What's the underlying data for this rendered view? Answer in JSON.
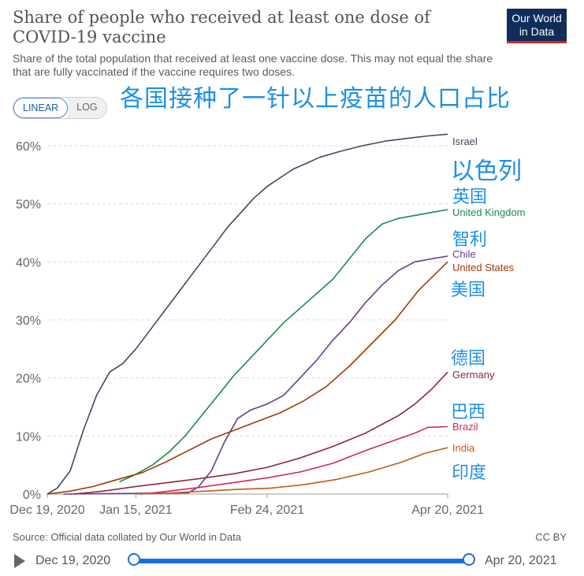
{
  "header": {
    "title": "Share of people who received at least one dose of COVID-19 vaccine",
    "subtitle": "Share of the total population that received at least one vaccine dose. This may not equal the share that are fully vaccinated if the vaccine requires two doses.",
    "logo_line1": "Our World",
    "logo_line2": "in Data"
  },
  "scale_toggle": {
    "linear": "LINEAR",
    "log": "LOG",
    "selected": "LINEAR"
  },
  "annotation_title_cn": "各国接种了一针以上疫苗的人口占比",
  "annotations_cn": {
    "Israel": "以色列",
    "United Kingdom": "英国",
    "Chile": "智利",
    "United States": "美国",
    "Germany": "德国",
    "Brazil": "巴西",
    "India": "印度"
  },
  "chart_data": {
    "type": "line",
    "title": "Share of people who received at least one dose of COVID-19 vaccine",
    "x_ticks": [
      "Dec 19, 2020",
      "Jan 15, 2021",
      "Feb 24, 2021",
      "Apr 20, 2021"
    ],
    "x_range": [
      "2020-12-19",
      "2021-04-20"
    ],
    "y_ticks": [
      "0%",
      "10%",
      "20%",
      "30%",
      "40%",
      "50%",
      "60%"
    ],
    "ylim": [
      0,
      60
    ],
    "grid": "horizontal dashed",
    "series": [
      {
        "name": "Israel",
        "color": "#3e4a63",
        "points": [
          [
            "2020-12-19",
            0
          ],
          [
            "2020-12-22",
            1
          ],
          [
            "2020-12-26",
            4
          ],
          [
            "2020-12-30",
            11
          ],
          [
            "2021-01-03",
            17
          ],
          [
            "2021-01-07",
            21
          ],
          [
            "2021-01-11",
            22.5
          ],
          [
            "2021-01-15",
            25
          ],
          [
            "2021-01-19",
            28
          ],
          [
            "2021-01-23",
            31
          ],
          [
            "2021-01-27",
            34
          ],
          [
            "2021-01-31",
            37
          ],
          [
            "2021-02-04",
            40
          ],
          [
            "2021-02-08",
            43
          ],
          [
            "2021-02-12",
            46
          ],
          [
            "2021-02-16",
            48.5
          ],
          [
            "2021-02-20",
            51
          ],
          [
            "2021-02-24",
            53
          ],
          [
            "2021-02-28",
            54.5
          ],
          [
            "2021-03-04",
            56
          ],
          [
            "2021-03-08",
            57
          ],
          [
            "2021-03-12",
            58
          ],
          [
            "2021-03-18",
            59
          ],
          [
            "2021-03-25",
            60
          ],
          [
            "2021-04-01",
            60.8
          ],
          [
            "2021-04-08",
            61.3
          ],
          [
            "2021-04-14",
            61.7
          ],
          [
            "2021-04-20",
            62
          ]
        ]
      },
      {
        "name": "United Kingdom",
        "color": "#1a8a4f",
        "points": [
          [
            "2021-01-10",
            2.1
          ],
          [
            "2021-01-15",
            3.4
          ],
          [
            "2021-01-20",
            5
          ],
          [
            "2021-01-25",
            7.2
          ],
          [
            "2021-01-30",
            10
          ],
          [
            "2021-02-04",
            13.5
          ],
          [
            "2021-02-09",
            17
          ],
          [
            "2021-02-14",
            20.5
          ],
          [
            "2021-02-19",
            23.5
          ],
          [
            "2021-02-24",
            26.5
          ],
          [
            "2021-03-01",
            29.5
          ],
          [
            "2021-03-06",
            32
          ],
          [
            "2021-03-11",
            34.5
          ],
          [
            "2021-03-16",
            37
          ],
          [
            "2021-03-21",
            40.5
          ],
          [
            "2021-03-26",
            44
          ],
          [
            "2021-03-31",
            46.5
          ],
          [
            "2021-04-05",
            47.5
          ],
          [
            "2021-04-10",
            48
          ],
          [
            "2021-04-15",
            48.5
          ],
          [
            "2021-04-20",
            49
          ]
        ]
      },
      {
        "name": "Chile",
        "color": "#6b3c8e",
        "points": [
          [
            "2020-12-24",
            0
          ],
          [
            "2021-01-31",
            0.2
          ],
          [
            "2021-02-03",
            1.2
          ],
          [
            "2021-02-07",
            4
          ],
          [
            "2021-02-11",
            9
          ],
          [
            "2021-02-15",
            13
          ],
          [
            "2021-02-19",
            14.5
          ],
          [
            "2021-02-24",
            15.5
          ],
          [
            "2021-03-01",
            17
          ],
          [
            "2021-03-06",
            20
          ],
          [
            "2021-03-11",
            23
          ],
          [
            "2021-03-16",
            26.5
          ],
          [
            "2021-03-21",
            29.5
          ],
          [
            "2021-03-26",
            33
          ],
          [
            "2021-03-31",
            36
          ],
          [
            "2021-04-05",
            38.5
          ],
          [
            "2021-04-10",
            40
          ],
          [
            "2021-04-15",
            40.5
          ],
          [
            "2021-04-20",
            41
          ]
        ]
      },
      {
        "name": "United States",
        "color": "#a2390a",
        "points": [
          [
            "2020-12-19",
            0
          ],
          [
            "2020-12-26",
            0.5
          ],
          [
            "2021-01-02",
            1.3
          ],
          [
            "2021-01-10",
            2.6
          ],
          [
            "2021-01-17",
            3.7
          ],
          [
            "2021-01-24",
            5.5
          ],
          [
            "2021-01-31",
            7.5
          ],
          [
            "2021-02-07",
            9.5
          ],
          [
            "2021-02-14",
            11
          ],
          [
            "2021-02-21",
            12.5
          ],
          [
            "2021-02-28",
            14
          ],
          [
            "2021-03-07",
            16
          ],
          [
            "2021-03-14",
            18.5
          ],
          [
            "2021-03-21",
            22
          ],
          [
            "2021-03-28",
            26
          ],
          [
            "2021-04-04",
            30
          ],
          [
            "2021-04-11",
            35
          ],
          [
            "2021-04-20",
            40
          ]
        ]
      },
      {
        "name": "Germany",
        "color": "#8b2a3a",
        "points": [
          [
            "2020-12-27",
            0
          ],
          [
            "2021-01-05",
            0.5
          ],
          [
            "2021-01-15",
            1.3
          ],
          [
            "2021-01-25",
            2
          ],
          [
            "2021-02-04",
            2.7
          ],
          [
            "2021-02-14",
            3.5
          ],
          [
            "2021-02-24",
            4.6
          ],
          [
            "2021-03-06",
            6.2
          ],
          [
            "2021-03-16",
            8.2
          ],
          [
            "2021-03-26",
            10.5
          ],
          [
            "2021-04-05",
            13.5
          ],
          [
            "2021-04-10",
            15.5
          ],
          [
            "2021-04-15",
            18
          ],
          [
            "2021-04-20",
            21
          ]
        ]
      },
      {
        "name": "Brazil",
        "color": "#cf2a57",
        "points": [
          [
            "2021-01-17",
            0
          ],
          [
            "2021-01-25",
            0.5
          ],
          [
            "2021-02-04",
            1.2
          ],
          [
            "2021-02-14",
            2
          ],
          [
            "2021-02-24",
            2.8
          ],
          [
            "2021-03-06",
            3.8
          ],
          [
            "2021-03-16",
            5.3
          ],
          [
            "2021-03-26",
            7.5
          ],
          [
            "2021-04-05",
            9.5
          ],
          [
            "2021-04-10",
            10.5
          ],
          [
            "2021-04-14",
            11.5
          ],
          [
            "2021-04-20",
            11.6
          ]
        ]
      },
      {
        "name": "India",
        "color": "#c05917",
        "points": [
          [
            "2021-01-16",
            0
          ],
          [
            "2021-01-26",
            0.2
          ],
          [
            "2021-02-05",
            0.5
          ],
          [
            "2021-02-15",
            0.8
          ],
          [
            "2021-02-25",
            1
          ],
          [
            "2021-03-07",
            1.6
          ],
          [
            "2021-03-17",
            2.5
          ],
          [
            "2021-03-27",
            3.8
          ],
          [
            "2021-04-06",
            5.5
          ],
          [
            "2021-04-13",
            7
          ],
          [
            "2021-04-20",
            8
          ]
        ]
      }
    ]
  },
  "footer": {
    "source": "Source: Official data collated by Our World in Data",
    "license": "CC BY"
  },
  "timeline": {
    "start": "Dec 19, 2020",
    "end": "Apr 20, 2021"
  }
}
